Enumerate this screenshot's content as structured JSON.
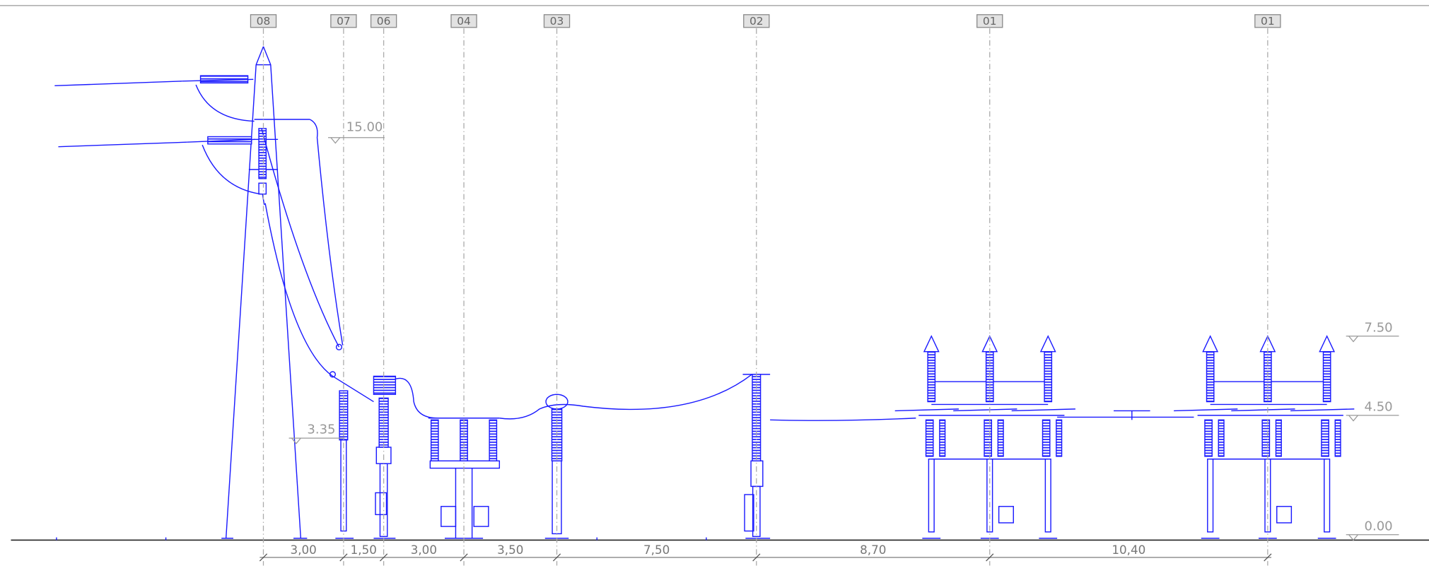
{
  "axis_labels": [
    "08",
    "07",
    "06",
    "04",
    "03",
    "02",
    "01",
    "01"
  ],
  "elevations": [
    "15.00",
    "3.35",
    "7.50",
    "4.50",
    "0.00"
  ],
  "dimensions": [
    "3,00",
    "1,50",
    "3,00",
    "3,50",
    "7,50",
    "8,70",
    "10,40"
  ]
}
